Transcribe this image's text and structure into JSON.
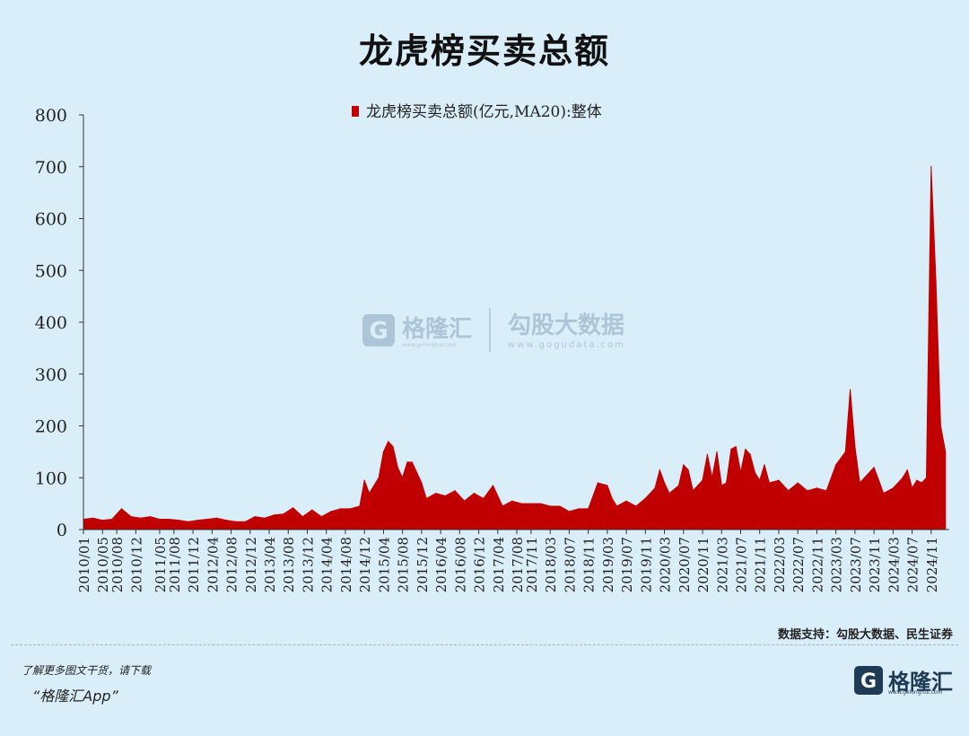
{
  "page": {
    "title": "龙虎榜买卖总额",
    "source_note": "数据支持：勾股大数据、民生证券",
    "footer_cta": "了解更多图文干货，请下载",
    "footer_app": "“格隆汇App”",
    "footer_logo_text": "格隆汇",
    "footer_logo_sub": "www.gelonghui.com"
  },
  "watermark": {
    "brand1": "格隆汇",
    "brand1_sub": "www.gelonghui.com",
    "brand2": "勾股大数据",
    "brand2_sub": "www.gogudata.com"
  },
  "colors": {
    "background": "#d9eef8",
    "series": "#c00000",
    "logo": "#1f3a55"
  },
  "icons": {
    "brand_logo": "g-logo-icon"
  },
  "chart_data": {
    "type": "area",
    "title": "",
    "xlabel": "",
    "ylabel": "",
    "ylim": [
      0,
      800
    ],
    "yticks": [
      "0",
      "100",
      "200",
      "300",
      "400",
      "500",
      "600",
      "700",
      "800"
    ],
    "xticks": [
      "2010/01",
      "2010/05",
      "2010/08",
      "2010/12",
      "2011/05",
      "2011/08",
      "2011/12",
      "2012/04",
      "2012/08",
      "2012/12",
      "2013/04",
      "2013/08",
      "2013/12",
      "2014/04",
      "2014/08",
      "2014/12",
      "2015/04",
      "2015/08",
      "2015/12",
      "2016/04",
      "2016/08",
      "2016/12",
      "2017/04",
      "2017/08",
      "2017/11",
      "2018/03",
      "2018/07",
      "2018/11",
      "2019/03",
      "2019/07",
      "2019/11",
      "2020/03",
      "2020/07",
      "2020/11",
      "2021/03",
      "2021/07",
      "2021/11",
      "2022/03",
      "2022/07",
      "2022/11",
      "2023/03",
      "2023/07",
      "2023/11",
      "2024/03",
      "2024/07",
      "2024/11"
    ],
    "legend": "top-center",
    "grid": false,
    "series": [
      {
        "name": "龙虎榜买卖总额(亿元,MA20):整体",
        "x": [
          "2010/01",
          "2010/03",
          "2010/05",
          "2010/07",
          "2010/09",
          "2010/11",
          "2011/01",
          "2011/03",
          "2011/05",
          "2011/07",
          "2011/09",
          "2011/11",
          "2012/01",
          "2012/03",
          "2012/05",
          "2012/07",
          "2012/09",
          "2012/11",
          "2013/01",
          "2013/03",
          "2013/05",
          "2013/07",
          "2013/09",
          "2013/11",
          "2014/01",
          "2014/03",
          "2014/05",
          "2014/07",
          "2014/09",
          "2014/11",
          "2014/12",
          "2015/01",
          "2015/03",
          "2015/04",
          "2015/05",
          "2015/06",
          "2015/07",
          "2015/08",
          "2015/09",
          "2015/10",
          "2015/12",
          "2016/01",
          "2016/03",
          "2016/05",
          "2016/07",
          "2016/09",
          "2016/11",
          "2017/01",
          "2017/03",
          "2017/05",
          "2017/07",
          "2017/09",
          "2017/11",
          "2018/01",
          "2018/03",
          "2018/05",
          "2018/07",
          "2018/09",
          "2018/11",
          "2019/01",
          "2019/03",
          "2019/04",
          "2019/05",
          "2019/07",
          "2019/09",
          "2019/11",
          "2020/01",
          "2020/02",
          "2020/03",
          "2020/04",
          "2020/06",
          "2020/07",
          "2020/08",
          "2020/09",
          "2020/11",
          "2020/12",
          "2021/01",
          "2021/02",
          "2021/03",
          "2021/04",
          "2021/05",
          "2021/06",
          "2021/07",
          "2021/08",
          "2021/09",
          "2021/10",
          "2021/11",
          "2021/12",
          "2022/01",
          "2022/03",
          "2022/05",
          "2022/07",
          "2022/09",
          "2022/11",
          "2023/01",
          "2023/03",
          "2023/05",
          "2023/06",
          "2023/07",
          "2023/08",
          "2023/09",
          "2023/11",
          "2023/12",
          "2024/01",
          "2024/03",
          "2024/05",
          "2024/06",
          "2024/07",
          "2024/08",
          "2024/09",
          "2024/10",
          "2024/11",
          "2024/12",
          "2025/01",
          "2025/02"
        ],
        "values": [
          20,
          22,
          18,
          20,
          40,
          25,
          22,
          25,
          20,
          20,
          18,
          15,
          18,
          20,
          22,
          18,
          15,
          15,
          25,
          22,
          28,
          30,
          42,
          25,
          38,
          25,
          35,
          40,
          40,
          45,
          95,
          70,
          100,
          150,
          170,
          160,
          120,
          100,
          130,
          130,
          90,
          60,
          70,
          65,
          75,
          55,
          70,
          60,
          85,
          45,
          55,
          50,
          50,
          50,
          45,
          45,
          35,
          40,
          40,
          90,
          85,
          60,
          45,
          55,
          45,
          60,
          80,
          115,
          90,
          70,
          85,
          125,
          115,
          75,
          95,
          145,
          100,
          150,
          85,
          90,
          155,
          160,
          110,
          155,
          145,
          110,
          95,
          125,
          90,
          95,
          75,
          90,
          75,
          80,
          75,
          125,
          150,
          270,
          160,
          90,
          100,
          120,
          95,
          70,
          80,
          100,
          115,
          80,
          95,
          90,
          100,
          700,
          480,
          200,
          150
        ]
      }
    ]
  }
}
